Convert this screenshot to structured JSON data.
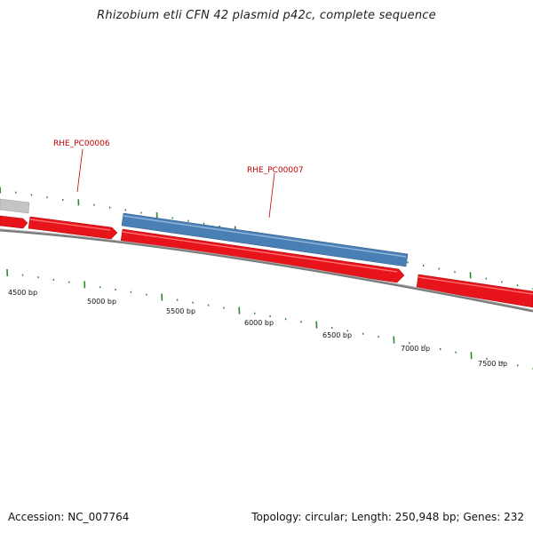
{
  "title": "Rhizobium etli CFN 42 plasmid p42c, complete sequence",
  "accession": "Accession: NC_007764",
  "summary": "Topology: circular; Length: 250,948 bp; Genes: 232",
  "colors": {
    "forward_gene": "#e8141c",
    "labeled_gene": "#4a7fb5",
    "other_gene": "#c8c8c8",
    "backbone": "#888888",
    "label_red": "#c00000",
    "tick_green": "#2a8a2a"
  },
  "genes": [
    {
      "id": "partial-grey",
      "strand": "top-left",
      "color_key": "other_gene"
    },
    {
      "id": "partial-red-1",
      "strand": "forward"
    },
    {
      "id": "RHE_PC00006",
      "strand": "forward"
    },
    {
      "id": "RHE_PC00007",
      "strand": "reverse"
    },
    {
      "id": "gene-7000",
      "strand": "forward"
    },
    {
      "id": "gene-right",
      "strand": "forward"
    }
  ],
  "gene_labels": [
    {
      "name": "RHE_PC00006"
    },
    {
      "name": "RHE_PC00007"
    }
  ],
  "position_labels": [
    "4500 bp",
    "5000 bp",
    "5500 bp",
    "6000 bp",
    "6500 bp",
    "7000 bp",
    "7500 bp"
  ]
}
